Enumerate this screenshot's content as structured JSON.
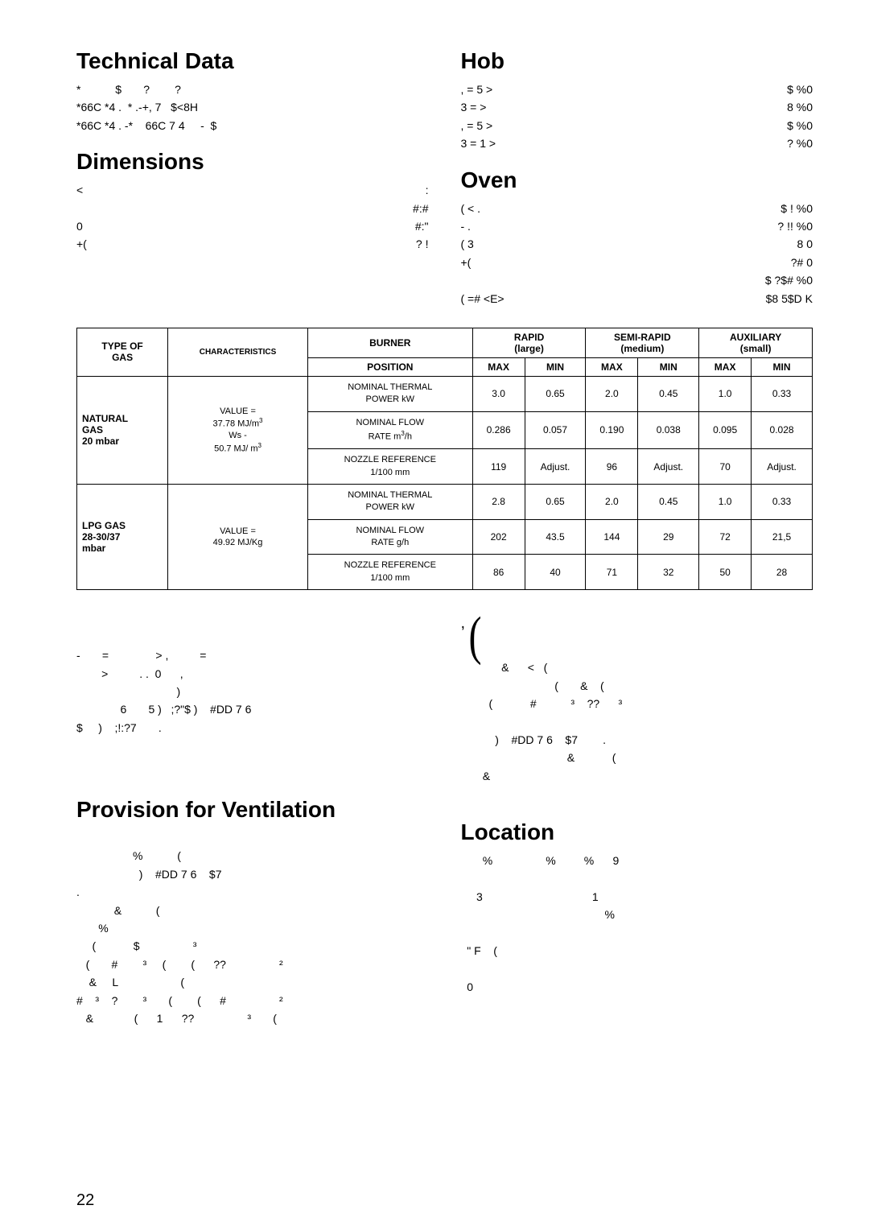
{
  "left_top": {
    "title": "Technical Data",
    "lines": [
      "*           $       ?        ?",
      "*66C *4 .  * .-+, 7   $<8H",
      "*66C *4 . -*    66C 7 4     -  $"
    ],
    "dim_title": "Dimensions",
    "dim_rows": [
      {
        "l": "<",
        "r": ":"
      },
      {
        "l": "",
        "r": "#:#"
      },
      {
        "l": "0",
        "r": "#:\""
      },
      {
        "l": "+(",
        "r": "? !"
      }
    ]
  },
  "right_top": {
    "hob_title": "Hob",
    "hob_rows": [
      {
        "l": ",            =    5    >",
        "r": "$   %0"
      },
      {
        "l": "3            =    >",
        "r": "8 %0"
      },
      {
        "l": ",            =    5    >",
        "r": "$   %0"
      },
      {
        "l": "3            =  1    >",
        "r": "?   %0"
      }
    ],
    "oven_title": "Oven",
    "oven_rows": [
      {
        "l": "  (      <     .",
        "r": "$  !  %0"
      },
      {
        "l": "-     .",
        "r": "? !!  %0"
      },
      {
        "l": "   (      3",
        "r": "8  0"
      },
      {
        "l": "+(",
        "r": "?# 0"
      },
      {
        "l": "",
        "r": "$ ?$# %0"
      },
      {
        "l": "         (       =#  <E>",
        "r": "$8 5$D  K"
      }
    ]
  },
  "table": {
    "headers": {
      "type": "TYPE OF\nGAS",
      "char": "CHARACTERISTICS",
      "burner": "BURNER",
      "rapid": "RAPID\n(large)",
      "semi": "SEMI-RAPID\n(medium)",
      "aux": "AUXILIARY\n(small)",
      "position": "POSITION",
      "max": "MAX",
      "min": "MIN"
    },
    "groups": [
      {
        "type": "NATURAL\nGAS\n20  mbar",
        "char_html": "VALUE =<br>37.78 MJ/m<sup>3</sup><br>Ws -<br>50.7 MJ/ m<sup>3</sup>",
        "rows": [
          {
            "b": "NOMINAL THERMAL\nPOWER kW",
            "v": [
              "3.0",
              "0.65",
              "2.0",
              "0.45",
              "1.0",
              "0.33"
            ]
          },
          {
            "b_html": "NOMINAL FLOW<br>RATE m<sup>3</sup>/h",
            "v": [
              "0.286",
              "0.057",
              "0.190",
              "0.038",
              "0.095",
              "0.028"
            ]
          },
          {
            "b": "NOZZLE REFERENCE\n1/100  mm",
            "v": [
              "119",
              "Adjust.",
              "96",
              "Adjust.",
              "70",
              "Adjust."
            ]
          }
        ]
      },
      {
        "type": "LPG GAS\n28-30/37\nmbar",
        "char_html": "VALUE =<br>49.92 MJ/Kg",
        "rows": [
          {
            "b": "NOMINAL THERMAL\nPOWER kW",
            "v": [
              "2.8",
              "0.65",
              "2.0",
              "0.45",
              "1.0",
              "0.33"
            ]
          },
          {
            "b": "NOMINAL FLOW\nRATE g/h",
            "v": [
              "202",
              "43.5",
              "144",
              "29",
              "72",
              "21,5"
            ]
          },
          {
            "b": "NOZZLE REFERENCE\n1/100  mm",
            "v": [
              "86",
              "40",
              "71",
              "32",
              "50",
              "28"
            ]
          }
        ]
      }
    ]
  },
  "mid_left": "-       =               > ,          =\n        >          . .  0      ,\n                                )\n              6       5 )   ;?\"$ )    #DD 7 6\n$     )    ;!:?7       .",
  "mid_right_symbol": ",",
  "mid_right": "             &      <   (\n                              (       &    (\n         (            #           ³    ??      ³\n\n           )    #DD 7 6    $7        .\n                                  &            (\n       &",
  "vent_title": "Provision for Ventilation",
  "vent_body": "\n                  %           (\n                    )    #DD 7 6    $7\n.\n            &           (\n       %\n     (            $                 ³\n   (       #        ³     (        (      ??                 ²\n    &     L                    (\n#    ³    ?        ³       (        (      #                 ²\n   &             (      1      ??                 ³       (",
  "loc_title": "Location",
  "loc_body": "       %                 %         %      9\n\n     3                                   1\n                                              %\n\n  \" F    (\n\n  0",
  "page": "22"
}
